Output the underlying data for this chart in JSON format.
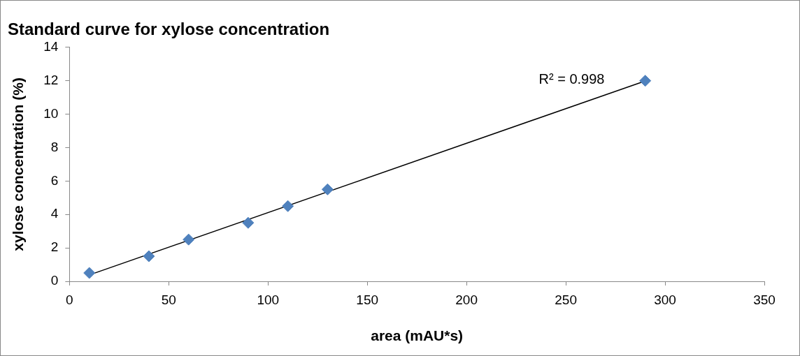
{
  "chart_data": {
    "type": "scatter",
    "title": "Standard curve for xylose concentration",
    "xlabel": "area (mAU*s)",
    "ylabel": "xylose concentration (%)",
    "x": [
      10,
      40,
      60,
      90,
      110,
      130,
      290
    ],
    "series": [
      {
        "type": "scatter",
        "color": "#4f81bd",
        "marker": "diamond",
        "values": [
          0.5,
          1.5,
          2.5,
          3.5,
          4.5,
          5.5,
          12
        ]
      },
      {
        "type": "line",
        "color": "#000000",
        "x": [
          10,
          290
        ],
        "values": [
          0.38,
          11.99
        ]
      }
    ],
    "annotations": [
      "R² = 0.998"
    ],
    "xlim": [
      0,
      350
    ],
    "xticks": [
      0,
      50,
      100,
      150,
      200,
      250,
      300,
      350
    ],
    "ylim": [
      0,
      14
    ],
    "yticks": [
      0,
      2,
      4,
      6,
      8,
      10,
      12,
      14
    ],
    "grid": false,
    "legend": false,
    "line_style": "solid"
  }
}
